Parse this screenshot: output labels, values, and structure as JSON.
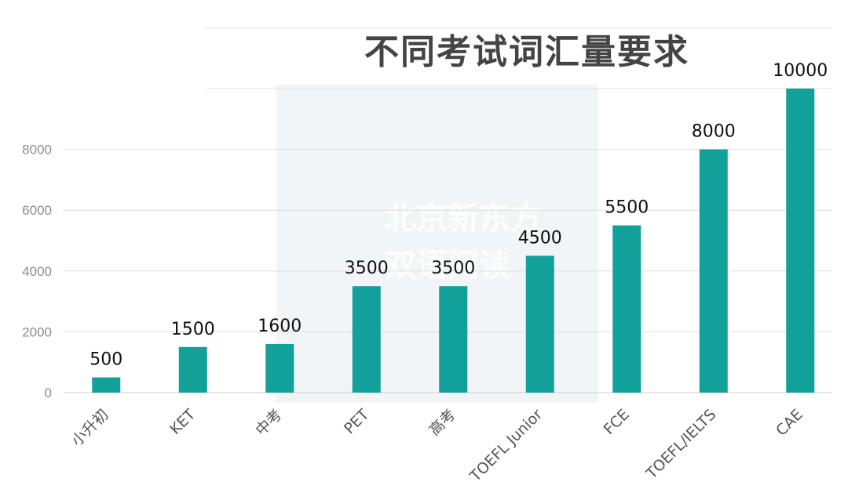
{
  "chart_data": {
    "type": "bar",
    "title": "不同考试词汇量要求",
    "categories": [
      "小升初",
      "KET",
      "中考",
      "PET",
      "高考",
      "TOEFL Junior",
      "FCE",
      "TOEFL/IELTS",
      "CAE"
    ],
    "values": [
      500,
      1500,
      1600,
      3500,
      3500,
      4500,
      5500,
      8000,
      10000
    ],
    "data_labels": [
      "500",
      "1500",
      "1600",
      "3500",
      "3500",
      "4500",
      "5500",
      "8000",
      "10000"
    ],
    "yticks": [
      0,
      2000,
      4000,
      6000,
      8000
    ],
    "ylim": [
      0,
      10000
    ],
    "grid": true,
    "legend": "none",
    "bar_color": "#12a09b",
    "watermark": "北京新东方 双语阅读"
  }
}
